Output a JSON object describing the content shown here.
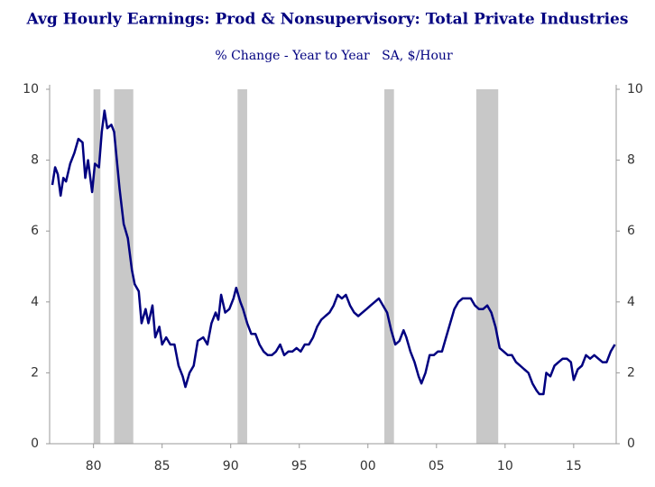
{
  "chart_data": {
    "type": "line",
    "title": "Avg Hourly Earnings: Prod & Nonsupervisory: Total Private Industries",
    "subtitle": "% Change - Year to Year   SA, $/Hour",
    "line_color": "#000080",
    "shade_color": "#c8c8c8",
    "shaded_periods": [
      [
        1980.0,
        1980.5
      ],
      [
        1981.5,
        1982.9
      ],
      [
        1990.5,
        1991.2
      ],
      [
        2001.2,
        2001.9
      ],
      [
        2007.9,
        2009.5
      ]
    ],
    "xlim": [
      1976.8,
      2018.1
    ],
    "xticks": [
      {
        "value": 1980,
        "label": "80"
      },
      {
        "value": 1985,
        "label": "85"
      },
      {
        "value": 1990,
        "label": "90"
      },
      {
        "value": 1995,
        "label": "95"
      },
      {
        "value": 2000,
        "label": "00"
      },
      {
        "value": 2005,
        "label": "05"
      },
      {
        "value": 2010,
        "label": "10"
      },
      {
        "value": 2015,
        "label": "15"
      }
    ],
    "ylim": [
      0,
      10
    ],
    "yticks": [
      0,
      2,
      4,
      6,
      8,
      10
    ],
    "y2lim": [
      0,
      10
    ],
    "y2ticks": [
      0,
      2,
      4,
      6,
      8,
      10
    ],
    "x": [
      1977.0,
      1977.2,
      1977.4,
      1977.6,
      1977.8,
      1978.0,
      1978.3,
      1978.6,
      1978.9,
      1979.2,
      1979.4,
      1979.6,
      1979.9,
      1980.1,
      1980.4,
      1980.6,
      1980.8,
      1981.0,
      1981.3,
      1981.5,
      1981.7,
      1981.9,
      1982.2,
      1982.5,
      1982.8,
      1983.0,
      1983.3,
      1983.5,
      1983.8,
      1984.0,
      1984.3,
      1984.5,
      1984.8,
      1985.0,
      1985.3,
      1985.6,
      1985.9,
      1986.2,
      1986.5,
      1986.7,
      1987.0,
      1987.3,
      1987.6,
      1988.0,
      1988.3,
      1988.6,
      1988.9,
      1989.1,
      1989.3,
      1989.6,
      1989.9,
      1990.2,
      1990.4,
      1990.7,
      1990.9,
      1991.2,
      1991.5,
      1991.8,
      1992.1,
      1992.4,
      1992.7,
      1993.0,
      1993.3,
      1993.6,
      1993.9,
      1994.2,
      1994.5,
      1994.8,
      1995.1,
      1995.4,
      1995.7,
      1996.0,
      1996.3,
      1996.6,
      1996.9,
      1997.2,
      1997.5,
      1997.8,
      1998.1,
      1998.4,
      1998.7,
      1999.0,
      1999.3,
      1999.6,
      1999.9,
      2000.2,
      2000.5,
      2000.8,
      2001.1,
      2001.4,
      2001.7,
      2002.0,
      2002.3,
      2002.6,
      2002.8,
      2003.1,
      2003.4,
      2003.7,
      2003.9,
      2004.2,
      2004.5,
      2004.8,
      2005.1,
      2005.4,
      2005.7,
      2006.0,
      2006.3,
      2006.6,
      2006.9,
      2007.2,
      2007.5,
      2007.8,
      2008.1,
      2008.4,
      2008.7,
      2009.0,
      2009.3,
      2009.6,
      2009.9,
      2010.2,
      2010.5,
      2010.8,
      2011.1,
      2011.4,
      2011.7,
      2012.0,
      2012.3,
      2012.5,
      2012.8,
      2013.0,
      2013.3,
      2013.6,
      2013.9,
      2014.2,
      2014.5,
      2014.8,
      2015.0,
      2015.3,
      2015.6,
      2015.9,
      2016.2,
      2016.5,
      2016.8,
      2017.1,
      2017.4,
      2017.7,
      2018.0
    ],
    "values": [
      7.3,
      7.8,
      7.6,
      7.0,
      7.5,
      7.4,
      7.9,
      8.2,
      8.6,
      8.5,
      7.5,
      8.0,
      7.1,
      7.9,
      7.8,
      8.8,
      9.4,
      8.9,
      9.0,
      8.8,
      8.0,
      7.2,
      6.2,
      5.8,
      4.9,
      4.5,
      4.3,
      3.4,
      3.8,
      3.4,
      3.9,
      3.0,
      3.3,
      2.8,
      3.0,
      2.8,
      2.8,
      2.2,
      1.9,
      1.6,
      2.0,
      2.2,
      2.9,
      3.0,
      2.8,
      3.4,
      3.7,
      3.5,
      4.2,
      3.7,
      3.8,
      4.1,
      4.4,
      4.0,
      3.8,
      3.4,
      3.1,
      3.1,
      2.8,
      2.6,
      2.5,
      2.5,
      2.6,
      2.8,
      2.5,
      2.6,
      2.6,
      2.7,
      2.6,
      2.8,
      2.8,
      3.0,
      3.3,
      3.5,
      3.6,
      3.7,
      3.9,
      4.2,
      4.1,
      4.2,
      3.9,
      3.7,
      3.6,
      3.7,
      3.8,
      3.9,
      4.0,
      4.1,
      3.9,
      3.7,
      3.2,
      2.8,
      2.9,
      3.2,
      3.0,
      2.6,
      2.3,
      1.9,
      1.7,
      2.0,
      2.5,
      2.5,
      2.6,
      2.6,
      3.0,
      3.4,
      3.8,
      4.0,
      4.1,
      4.1,
      4.1,
      3.9,
      3.8,
      3.8,
      3.9,
      3.7,
      3.3,
      2.7,
      2.6,
      2.5,
      2.5,
      2.3,
      2.2,
      2.1,
      2.0,
      1.7,
      1.5,
      1.4,
      1.4,
      2.0,
      1.9,
      2.2,
      2.3,
      2.4,
      2.4,
      2.3,
      1.8,
      2.1,
      2.2,
      2.5,
      2.4,
      2.5,
      2.4,
      2.3,
      2.3,
      2.6,
      2.8
    ]
  }
}
